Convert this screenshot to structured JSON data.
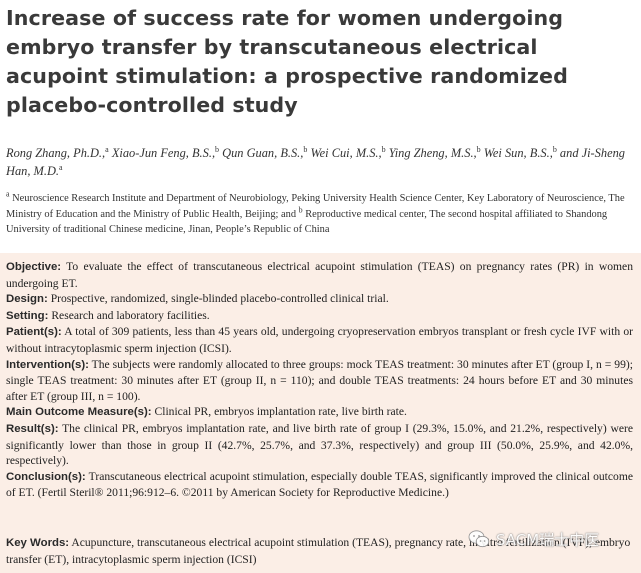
{
  "title": "Increase of success rate for women undergoing embryo transfer by transcutaneous electrical acupoint stimulation: a prospective randomized placebo-controlled study",
  "authors": [
    {
      "name": "Rong Zhang, Ph.D.,",
      "sup": "a"
    },
    {
      "name": "Xiao-Jun Feng, B.S.,",
      "sup": "b"
    },
    {
      "name": "Qun Guan, B.S.,",
      "sup": "b"
    },
    {
      "name": "Wei Cui, M.S.,",
      "sup": "b"
    },
    {
      "name": "Ying Zheng, M.S.,",
      "sup": "b"
    },
    {
      "name": "Wei Sun, B.S.,",
      "sup": "b"
    },
    {
      "name": "and Ji-Sheng Han, M.D.",
      "sup": "a"
    }
  ],
  "affiliation": {
    "sup_a": "a",
    "text_a": "Neuroscience Research Institute and Department of Neurobiology, Peking University Health Science Center, Key Laboratory of Neuroscience, The Ministry of Education and the Ministry of Public Health, Beijing; and",
    "sup_b": "b",
    "text_b": "Reproductive medical center, The second hospital affiliated to Shandong University of traditional Chinese medicine, Jinan, People’s Republic of China"
  },
  "abstract": [
    {
      "label": "Objective:",
      "text": "To evaluate the effect of transcutaneous electrical acupoint stimulation (TEAS) on pregnancy rates (PR) in women undergoing ET."
    },
    {
      "label": "Design:",
      "text": "Prospective, randomized, single-blinded placebo-controlled clinical trial."
    },
    {
      "label": "Setting:",
      "text": "Research and laboratory facilities."
    },
    {
      "label": "Patient(s):",
      "text": "A total of 309 patients, less than 45 years old, undergoing cryopreservation embryos transplant or fresh cycle IVF with or without intracytoplasmic sperm injection (ICSI)."
    },
    {
      "label": "Intervention(s):",
      "text": "The subjects were randomly allocated to three groups: mock TEAS treatment: 30 minutes after ET (group I, n = 99); single TEAS treatment: 30 minutes after ET (group II, n = 110); and double TEAS treatments: 24 hours before ET and 30 minutes after ET (group III, n = 100)."
    },
    {
      "label": "Main Outcome Measure(s):",
      "text": "Clinical PR, embryos implantation rate, live birth rate."
    },
    {
      "label": "Result(s):",
      "text": "The clinical PR, embryos implantation rate, and live birth rate of group I (29.3%, 15.0%, and 21.2%, respectively) were significantly lower than those in group II (42.7%, 25.7%, and 37.3%, respectively) and group III (50.0%, 25.9%, and 42.0%, respectively)."
    },
    {
      "label": "Conclusion(s):",
      "text": "Transcutaneous electrical acupoint stimulation, especially double TEAS, significantly improved the clinical outcome of ET. (Fertil Steril® 2011;96:912–6. ©2011 by American Society for Reproductive Medicine.)"
    }
  ],
  "keywords": {
    "label": "Key Words:",
    "text": "Acupuncture, transcutaneous electrical acupoint stimulation (TEAS), pregnancy rate, in vitro fertilization (IVF), embryo transfer (ET), intracytoplasmic sperm injection (ICSI)"
  },
  "watermark": {
    "text": "SACM瑞士中医",
    "icon": "wechat-icon"
  },
  "colors": {
    "abstract_bg": "#fbeee6",
    "title": "#3a3a3a"
  }
}
